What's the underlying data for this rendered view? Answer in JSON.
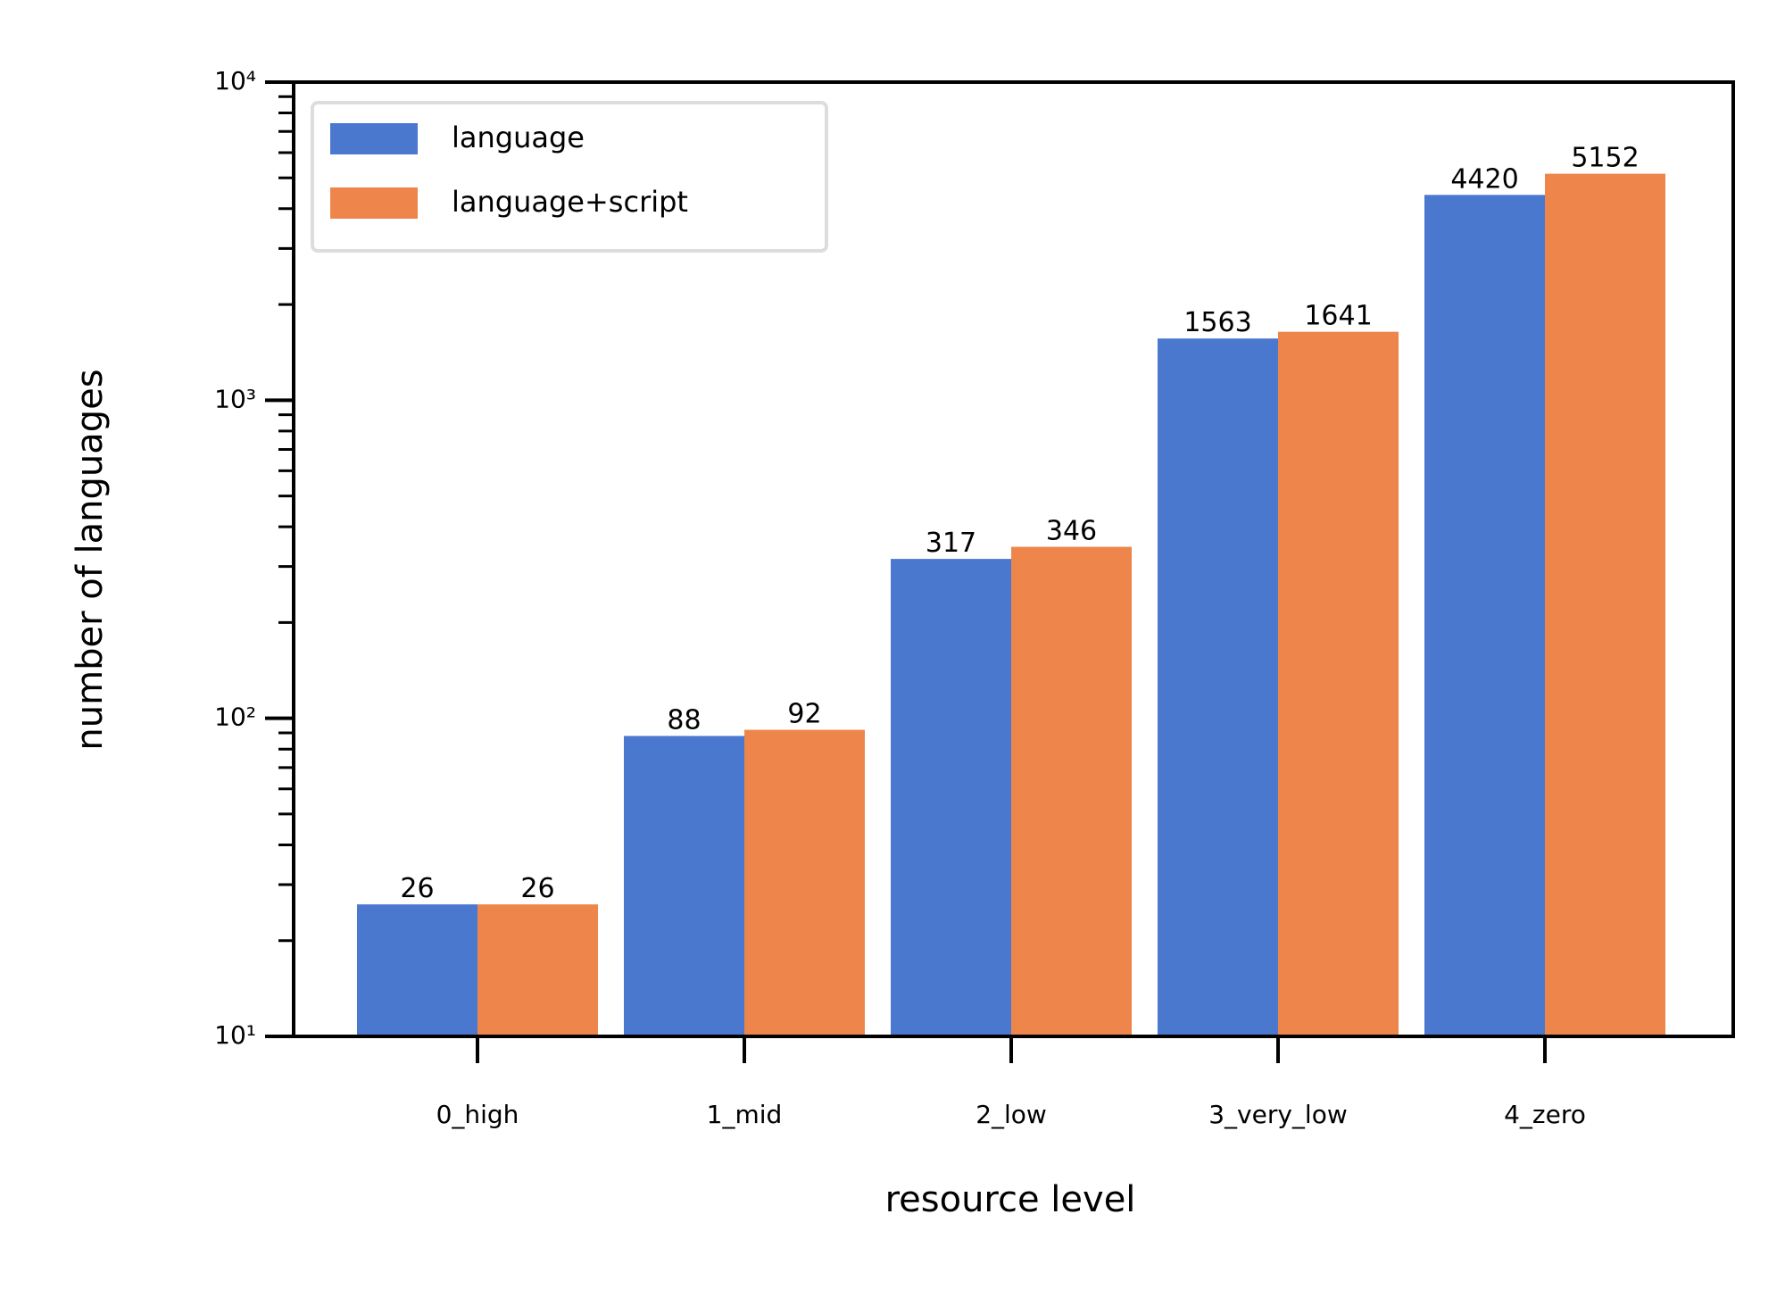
{
  "chart_data": {
    "type": "bar",
    "log_scale_y": true,
    "xlabel": "resource level",
    "ylabel": "number of languages",
    "categories": [
      "0_high",
      "1_mid",
      "2_low",
      "3_very_low",
      "4_zero"
    ],
    "series": [
      {
        "name": "language",
        "color": "#4a78cf",
        "values": [
          26,
          88,
          317,
          1563,
          4420
        ]
      },
      {
        "name": "language+script",
        "color": "#ee864c",
        "values": [
          26,
          92,
          346,
          1641,
          5152
        ]
      }
    ],
    "ylim": [
      10,
      10000
    ],
    "yticks": [
      {
        "value": 10,
        "label": "10¹"
      },
      {
        "value": 100,
        "label": "10²"
      },
      {
        "value": 1000,
        "label": "10³"
      },
      {
        "value": 10000,
        "label": "10⁴"
      }
    ],
    "yminorticks": [
      20,
      30,
      40,
      50,
      60,
      70,
      80,
      90,
      200,
      300,
      400,
      500,
      600,
      700,
      800,
      900,
      2000,
      3000,
      4000,
      5000,
      6000,
      7000,
      8000,
      9000
    ],
    "legend": "upper left",
    "grid": false
  }
}
